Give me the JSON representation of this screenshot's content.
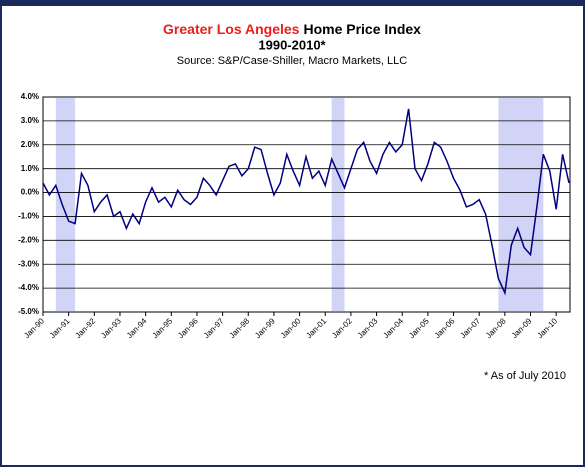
{
  "chart_data": {
    "type": "line",
    "title_highlight": "Greater Los Angeles",
    "title": "Home Price Index",
    "title_line2": "1990-2010*",
    "subtitle": "Source: S&P/Case-Shiller, Macro Markets, LLC",
    "footnote": "* As of July 2010",
    "x": [
      "Jan-90",
      "Apr-90",
      "Jul-90",
      "Oct-90",
      "Jan-91",
      "Apr-91",
      "Jul-91",
      "Oct-91",
      "Jan-92",
      "Apr-92",
      "Jul-92",
      "Oct-92",
      "Jan-93",
      "Apr-93",
      "Jul-93",
      "Oct-93",
      "Jan-94",
      "Apr-94",
      "Jul-94",
      "Oct-94",
      "Jan-95",
      "Apr-95",
      "Jul-95",
      "Oct-95",
      "Jan-96",
      "Apr-96",
      "Jul-96",
      "Oct-96",
      "Jan-97",
      "Apr-97",
      "Jul-97",
      "Oct-97",
      "Jan-98",
      "Apr-98",
      "Jul-98",
      "Oct-98",
      "Jan-99",
      "Apr-99",
      "Jul-99",
      "Oct-99",
      "Jan-00",
      "Apr-00",
      "Jul-00",
      "Oct-00",
      "Jan-01",
      "Apr-01",
      "Jul-01",
      "Oct-01",
      "Jan-02",
      "Apr-02",
      "Jul-02",
      "Oct-02",
      "Jan-03",
      "Apr-03",
      "Jul-03",
      "Oct-03",
      "Jan-04",
      "Apr-04",
      "Jul-04",
      "Oct-04",
      "Jan-05",
      "Apr-05",
      "Jul-05",
      "Oct-05",
      "Jan-06",
      "Apr-06",
      "Jul-06",
      "Oct-06",
      "Jan-07",
      "Apr-07",
      "Jul-07",
      "Oct-07",
      "Jan-08",
      "Apr-08",
      "Jul-08",
      "Oct-08",
      "Jan-09",
      "Apr-09",
      "Jul-09",
      "Oct-09",
      "Jan-10",
      "Apr-10",
      "Jul-10"
    ],
    "series": [
      {
        "color": "#000080",
        "values": [
          0.4,
          -0.1,
          0.3,
          -0.5,
          -1.2,
          -1.3,
          0.8,
          0.3,
          -0.8,
          -0.4,
          -0.1,
          -1.0,
          -0.8,
          -1.5,
          -0.9,
          -1.3,
          -0.4,
          0.2,
          -0.4,
          -0.2,
          -0.6,
          0.1,
          -0.3,
          -0.5,
          -0.2,
          0.6,
          0.3,
          -0.1,
          0.5,
          1.1,
          1.2,
          0.7,
          1.0,
          1.9,
          1.8,
          0.8,
          -0.1,
          0.4,
          1.6,
          0.9,
          0.3,
          1.5,
          0.6,
          0.9,
          0.3,
          1.4,
          0.8,
          0.2,
          1.0,
          1.8,
          2.1,
          1.3,
          0.8,
          1.6,
          2.1,
          1.7,
          2.0,
          3.5,
          1.0,
          0.5,
          1.2,
          2.1,
          1.9,
          1.3,
          0.6,
          0.1,
          -0.6,
          -0.5,
          -0.3,
          -0.9,
          -2.2,
          -3.6,
          -4.2,
          -2.2,
          -1.5,
          -2.3,
          -2.6,
          -0.6,
          1.6,
          0.9,
          -0.7,
          1.6,
          0.4
        ]
      }
    ],
    "shaded_periods": [
      [
        "Jul-90",
        "Apr-91"
      ],
      [
        "Apr-01",
        "Oct-01"
      ],
      [
        "Oct-07",
        "Jul-09"
      ]
    ],
    "xticks": [
      "Jan-90",
      "Jan-91",
      "Jan-92",
      "Jan-93",
      "Jan-94",
      "Jan-95",
      "Jan-96",
      "Jan-97",
      "Jan-98",
      "Jan-99",
      "Jan-00",
      "Jan-01",
      "Jan-02",
      "Jan-03",
      "Jan-04",
      "Jan-05",
      "Jan-06",
      "Jan-07",
      "Jan-08",
      "Jan-09",
      "Jan-10"
    ],
    "ylim": [
      -5,
      4
    ],
    "yticks": [
      {
        "value": 4,
        "label": "4.0%"
      },
      {
        "value": 3,
        "label": "3.0%"
      },
      {
        "value": 2,
        "label": "2.0%"
      },
      {
        "value": 1,
        "label": "1.0%"
      },
      {
        "value": 0,
        "label": "0.0%"
      },
      {
        "value": -1,
        "label": "-1.0%"
      },
      {
        "value": -2,
        "label": "-2.0%"
      },
      {
        "value": -3,
        "label": "-3.0%"
      },
      {
        "value": -4,
        "label": "-4.0%"
      },
      {
        "value": -5,
        "label": "-5.0%"
      }
    ],
    "grid": true
  }
}
